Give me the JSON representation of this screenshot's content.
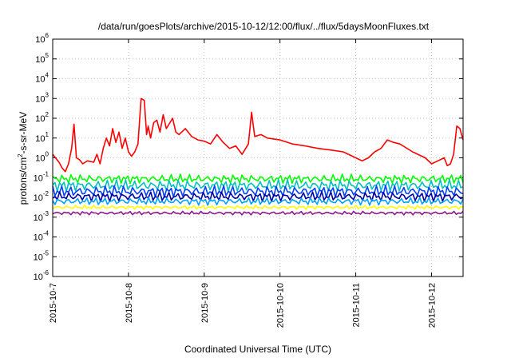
{
  "chart_data": {
    "type": "line",
    "title": "/data/run/goesPlots/archive/2015-10-12/12:00/flux/../flux/5daysMoonFluxes.txt",
    "xlabel": "Coordinated Universal Time (UTC)",
    "ylabel": {
      "text_before_superscript": "protons/cm",
      "superscript": "2",
      "text_after_superscript": "-s-sr-MeV"
    },
    "y_scale": "log",
    "ylim": [
      1e-06,
      1000000.0
    ],
    "y_ticks": [
      {
        "base": "10",
        "exp": "-6",
        "value": 1e-06
      },
      {
        "base": "10",
        "exp": "-5",
        "value": 1e-05
      },
      {
        "base": "10",
        "exp": "-4",
        "value": 0.0001
      },
      {
        "base": "10",
        "exp": "-3",
        "value": 0.001
      },
      {
        "base": "10",
        "exp": "-2",
        "value": 0.01
      },
      {
        "base": "10",
        "exp": "-1",
        "value": 0.1
      },
      {
        "base": "10",
        "exp": "0",
        "value": 1
      },
      {
        "base": "10",
        "exp": "1",
        "value": 10
      },
      {
        "base": "10",
        "exp": "2",
        "value": 100
      },
      {
        "base": "10",
        "exp": "3",
        "value": 1000
      },
      {
        "base": "10",
        "exp": "4",
        "value": 10000
      },
      {
        "base": "10",
        "exp": "5",
        "value": 100000
      },
      {
        "base": "10",
        "exp": "6",
        "value": 1000000
      }
    ],
    "xlim": [
      "2015-10-07T00:00",
      "2015-10-12T10:00"
    ],
    "x_ticks": [
      "2015-10-7",
      "2015-10-8",
      "2015-10-9",
      "2015-10-10",
      "2015-10-11",
      "2015-10-12"
    ],
    "grid": true,
    "series": [
      {
        "color": "#ff0000",
        "x": [
          "2015-10-07T00:00",
          "2015-10-07T02:00",
          "2015-10-07T03:00",
          "2015-10-07T04:00",
          "2015-10-07T05:00",
          "2015-10-07T06:00",
          "2015-10-07T06:45",
          "2015-10-07T07:30",
          "2015-10-07T08:30",
          "2015-10-07T09:30",
          "2015-10-07T11:00",
          "2015-10-07T13:00",
          "2015-10-07T14:00",
          "2015-10-07T15:00",
          "2015-10-07T16:00",
          "2015-10-07T17:00",
          "2015-10-07T18:00",
          "2015-10-07T19:00",
          "2015-10-07T20:00",
          "2015-10-07T21:00",
          "2015-10-07T22:00",
          "2015-10-07T23:00",
          "2015-10-08T00:00",
          "2015-10-08T01:00",
          "2015-10-08T02:00",
          "2015-10-08T03:00",
          "2015-10-08T04:00",
          "2015-10-08T05:00",
          "2015-10-08T05:45",
          "2015-10-08T06:15",
          "2015-10-08T07:00",
          "2015-10-08T08:00",
          "2015-10-08T09:00",
          "2015-10-08T10:00",
          "2015-10-08T11:00",
          "2015-10-08T12:00",
          "2015-10-08T14:00",
          "2015-10-08T15:00",
          "2015-10-08T16:00",
          "2015-10-08T18:00",
          "2015-10-08T20:00",
          "2015-10-08T22:00",
          "2015-10-09T00:00",
          "2015-10-09T02:00",
          "2015-10-09T04:00",
          "2015-10-09T06:00",
          "2015-10-09T08:00",
          "2015-10-09T10:00",
          "2015-10-09T12:00",
          "2015-10-09T14:00",
          "2015-10-09T15:00",
          "2015-10-09T16:00",
          "2015-10-09T18:00",
          "2015-10-09T20:00",
          "2015-10-10T00:00",
          "2015-10-10T04:00",
          "2015-10-10T08:00",
          "2015-10-10T12:00",
          "2015-10-10T16:00",
          "2015-10-10T20:00",
          "2015-10-11T00:00",
          "2015-10-11T02:00",
          "2015-10-11T04:00",
          "2015-10-11T06:00",
          "2015-10-11T08:00",
          "2015-10-11T10:00",
          "2015-10-11T12:00",
          "2015-10-11T14:00",
          "2015-10-11T18:00",
          "2015-10-11T22:00",
          "2015-10-12T00:00",
          "2015-10-12T02:00",
          "2015-10-12T04:00",
          "2015-10-12T05:00",
          "2015-10-12T06:00",
          "2015-10-12T07:00",
          "2015-10-12T08:00",
          "2015-10-12T09:00",
          "2015-10-12T10:00"
        ],
        "values": [
          1.5,
          0.6,
          0.3,
          0.2,
          0.5,
          3,
          50,
          1,
          0.8,
          0.5,
          0.7,
          0.6,
          1.5,
          0.5,
          3,
          10,
          4,
          30,
          6,
          20,
          3,
          10,
          2,
          1.2,
          2,
          5,
          1000,
          800,
          15,
          40,
          10,
          60,
          80,
          20,
          150,
          30,
          100,
          20,
          15,
          30,
          12,
          8,
          7,
          5,
          15,
          6,
          3,
          4,
          1.5,
          5,
          200,
          12,
          15,
          10,
          8,
          5,
          4,
          3,
          2.5,
          2,
          1,
          0.7,
          1,
          2,
          3,
          8,
          6,
          5,
          2,
          1,
          0.5,
          0.7,
          1,
          0.4,
          0.5,
          1.5,
          40,
          30,
          8
        ]
      },
      {
        "color": "#00ff00",
        "band": [
          0.05,
          0.15
        ]
      },
      {
        "color": "#00c0c0",
        "band": [
          0.02,
          0.08
        ]
      },
      {
        "color": "#0040ff",
        "band": [
          0.01,
          0.04
        ]
      },
      {
        "color": "#0000a0",
        "band": [
          0.006,
          0.02
        ]
      },
      {
        "color": "#00a0ff",
        "band": [
          0.004,
          0.01
        ]
      },
      {
        "color": "#ffff00",
        "band": [
          0.0025,
          0.004
        ]
      },
      {
        "color": "#8b1a8b",
        "band": [
          0.0013,
          0.002
        ]
      }
    ]
  }
}
